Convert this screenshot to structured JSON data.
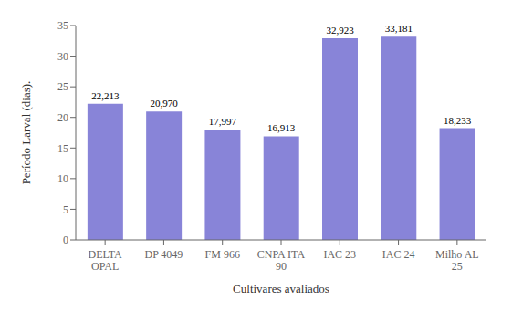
{
  "chart_data": {
    "type": "bar",
    "categories": [
      "DELTA\nOPAL",
      "DP 4049",
      "FM 966",
      "CNPA ITA\n90",
      "IAC 23",
      "IAC 24",
      "Milho AL\n25"
    ],
    "values": [
      22.213,
      20.97,
      17.997,
      16.913,
      32.923,
      33.181,
      18.233
    ],
    "value_labels": [
      "22,213",
      "20,970",
      "17,997",
      "16,913",
      "32,923",
      "33,181",
      "18,233"
    ],
    "data_labels": true,
    "ylabel": "Período Larval (dias).",
    "xlabel": "Cultivares avaliados",
    "ylim": [
      0,
      35
    ],
    "yticks": [
      0,
      5,
      10,
      15,
      20,
      25,
      30,
      35
    ],
    "color": "#8884d8",
    "grid": false
  }
}
